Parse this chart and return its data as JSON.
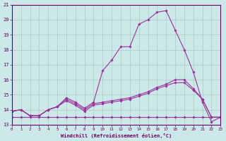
{
  "xlabel": "Windchill (Refroidissement éolien,°C)",
  "bg_color": "#cce8e8",
  "grid_color": "#aacccc",
  "line_color": "#993399",
  "xlim": [
    0,
    23
  ],
  "ylim": [
    13,
    21
  ],
  "xticks": [
    0,
    1,
    2,
    3,
    4,
    5,
    6,
    7,
    8,
    9,
    10,
    11,
    12,
    13,
    14,
    15,
    16,
    17,
    18,
    19,
    20,
    21,
    22,
    23
  ],
  "yticks": [
    13,
    14,
    15,
    16,
    17,
    18,
    19,
    20,
    21
  ],
  "line_big_y": [
    13.9,
    14.0,
    13.6,
    13.6,
    14.0,
    14.2,
    14.8,
    14.5,
    14.1,
    14.5,
    16.6,
    17.3,
    18.2,
    18.2,
    19.7,
    20.0,
    20.5,
    20.6,
    19.3,
    18.0,
    16.5,
    14.5,
    13.2,
    13.5
  ],
  "line_mid_y": [
    13.9,
    14.0,
    13.6,
    13.6,
    14.0,
    14.2,
    14.6,
    14.3,
    13.9,
    14.3,
    14.4,
    14.5,
    14.6,
    14.7,
    14.9,
    15.1,
    15.4,
    15.6,
    15.8,
    15.8,
    15.3,
    14.7,
    13.5,
    13.5
  ],
  "line_low_y": [
    13.9,
    14.0,
    13.6,
    13.6,
    14.0,
    14.2,
    14.7,
    14.4,
    14.0,
    14.4,
    14.5,
    14.6,
    14.7,
    14.8,
    15.0,
    15.2,
    15.5,
    15.7,
    16.0,
    16.0,
    15.4,
    14.7,
    13.5,
    13.5
  ],
  "line_flat_y": [
    13.5,
    13.5,
    13.5,
    13.5,
    13.5,
    13.5,
    13.5,
    13.5,
    13.5,
    13.5,
    13.5,
    13.5,
    13.5,
    13.5,
    13.5,
    13.5,
    13.5,
    13.5,
    13.5,
    13.5,
    13.5,
    13.5,
    13.5,
    13.5
  ]
}
